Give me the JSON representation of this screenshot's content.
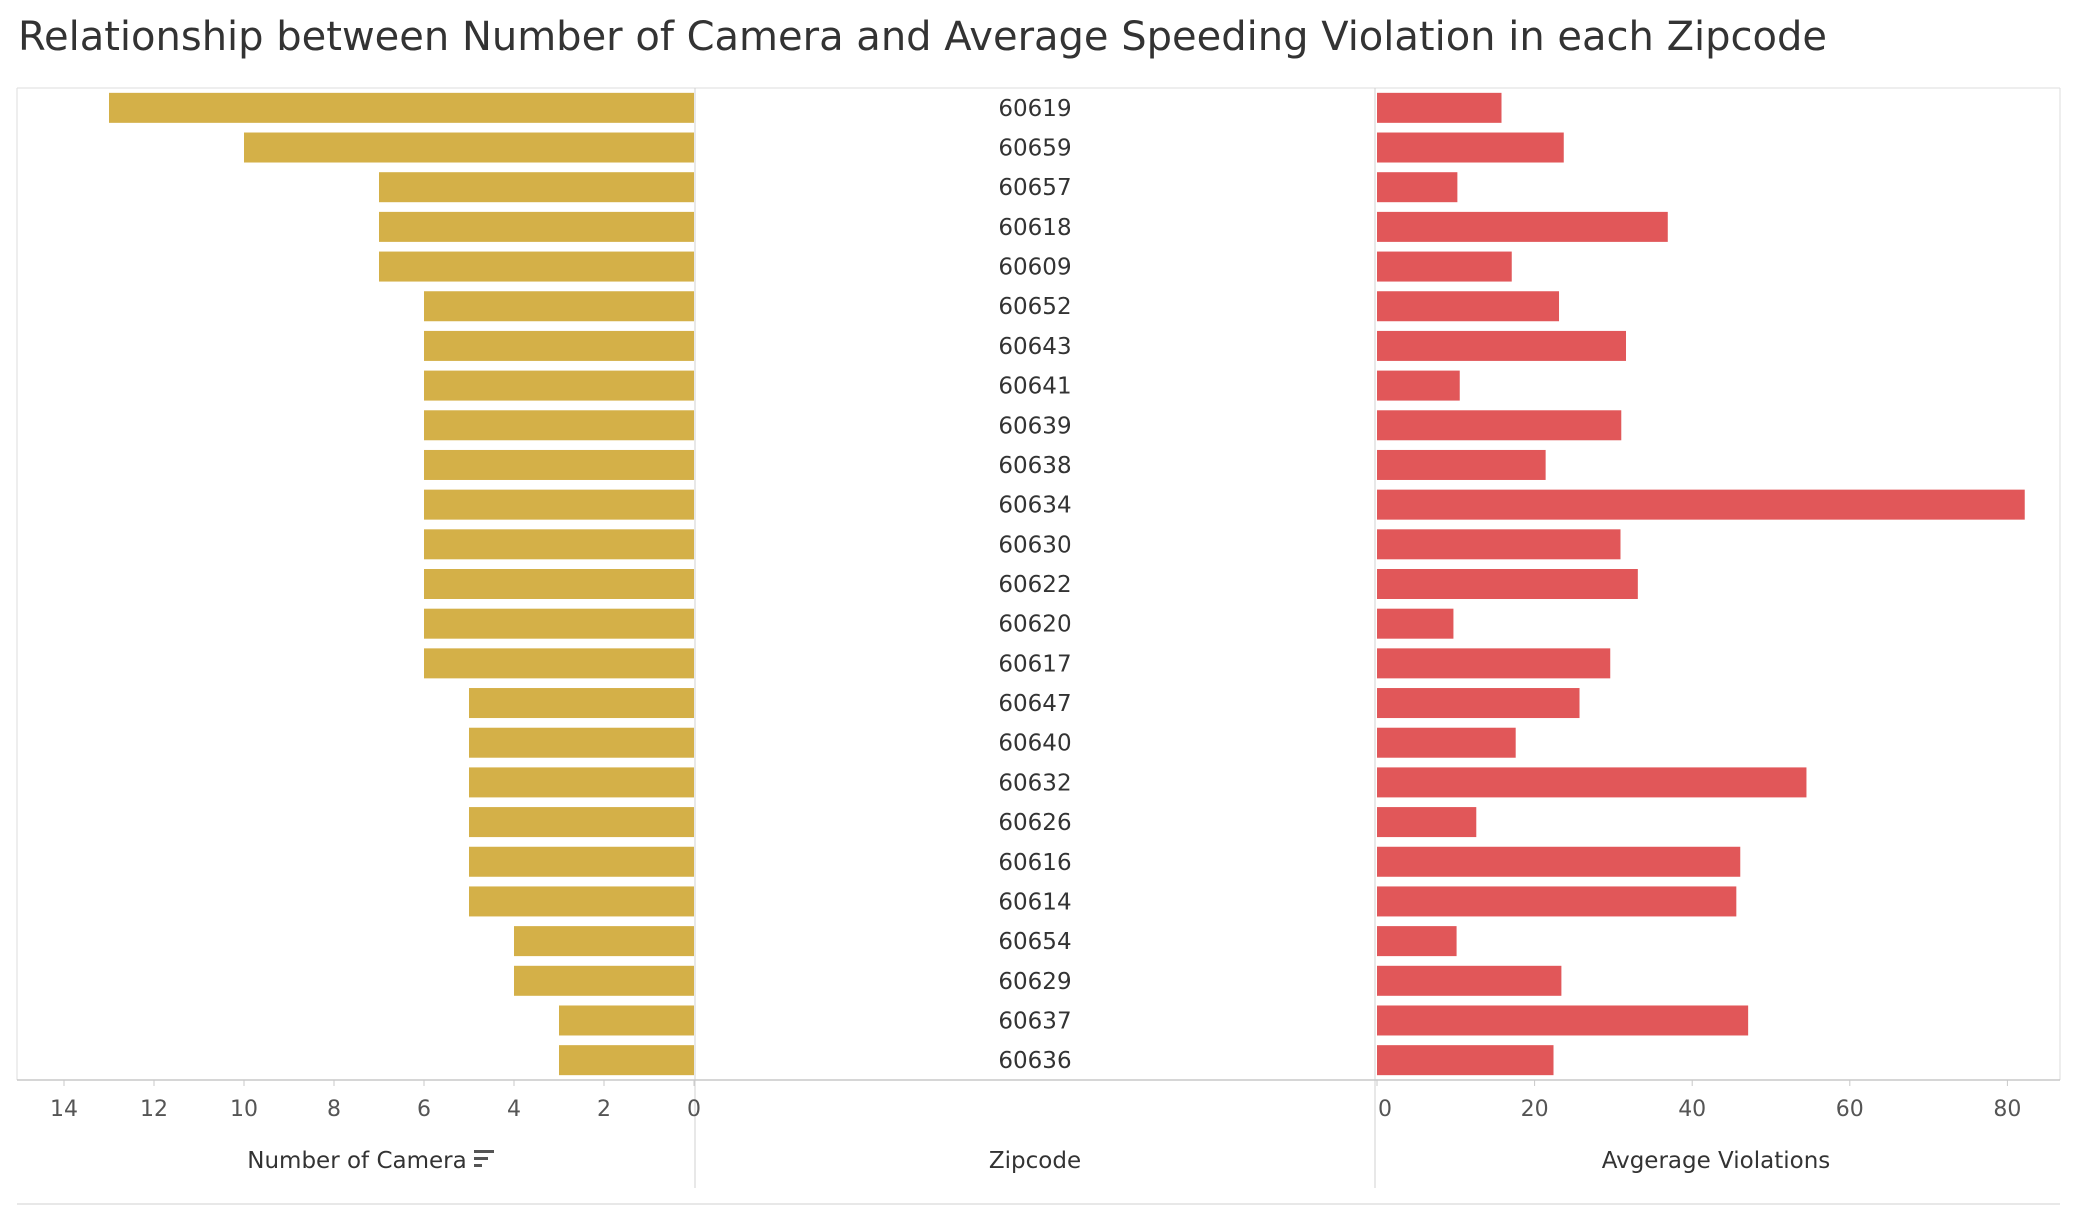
{
  "title": "Relationship between Number of Camera and Average Speeding Violation in each Zipcode",
  "colors": {
    "camera": "#D4B048",
    "violations": "#E15759",
    "axis": "#c8c8c8",
    "text": "#333333",
    "tick": "#555555"
  },
  "icons": {
    "sort": "sort-descending-icon"
  },
  "chart_data": {
    "type": "bar",
    "layout": "butterfly",
    "categories": [
      "60619",
      "60659",
      "60657",
      "60618",
      "60609",
      "60652",
      "60643",
      "60641",
      "60639",
      "60638",
      "60634",
      "60630",
      "60622",
      "60620",
      "60617",
      "60647",
      "60640",
      "60632",
      "60626",
      "60616",
      "60614",
      "60654",
      "60629",
      "60637",
      "60636"
    ],
    "series": [
      {
        "name": "Number of Camera",
        "values": [
          13,
          10,
          7,
          7,
          7,
          6,
          6,
          6,
          6,
          6,
          6,
          6,
          6,
          6,
          6,
          5,
          5,
          5,
          5,
          5,
          5,
          4,
          4,
          3,
          3
        ]
      },
      {
        "name": "Avgerage Violations",
        "values": [
          15.8,
          23.7,
          10.2,
          36.9,
          17.1,
          23.1,
          31.6,
          10.5,
          31.0,
          21.4,
          82.2,
          30.9,
          33.1,
          9.7,
          29.6,
          25.7,
          17.6,
          54.5,
          12.6,
          46.1,
          45.6,
          10.1,
          23.4,
          47.1,
          22.4
        ]
      }
    ],
    "left_axis": {
      "label": "Number of Camera",
      "ticks": [
        "14",
        "12",
        "10",
        "8",
        "6",
        "4",
        "2",
        "0"
      ],
      "range": [
        0,
        14
      ],
      "reversed": true,
      "sorted": "descending"
    },
    "middle_axis": {
      "label": "Zipcode"
    },
    "right_axis": {
      "label": "Avgerage Violations",
      "ticks": [
        "0",
        "20",
        "40",
        "60",
        "80"
      ],
      "range": [
        0,
        85
      ]
    },
    "grid": false,
    "legend": "none"
  }
}
